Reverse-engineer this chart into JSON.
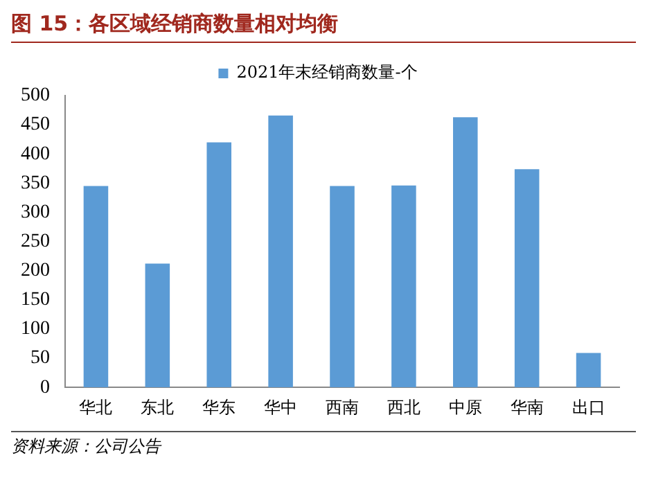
{
  "chart_data": {
    "type": "bar",
    "title": "图 15：各区域经销商数量相对均衡",
    "categories": [
      "华北",
      "东北",
      "华东",
      "华中",
      "西南",
      "西北",
      "中原",
      "华南",
      "出口"
    ],
    "series": [
      {
        "name": "2021年末经销商数量-个",
        "color": "#5b9bd5",
        "values": [
          345,
          212,
          420,
          466,
          345,
          346,
          463,
          374,
          59
        ]
      }
    ],
    "ylim": [
      0,
      500
    ],
    "yticks": [
      0,
      50,
      100,
      150,
      200,
      250,
      300,
      350,
      400,
      450,
      500
    ],
    "grid": false,
    "legend": "top",
    "annotations": [
      "资料来源：公司公告"
    ]
  }
}
